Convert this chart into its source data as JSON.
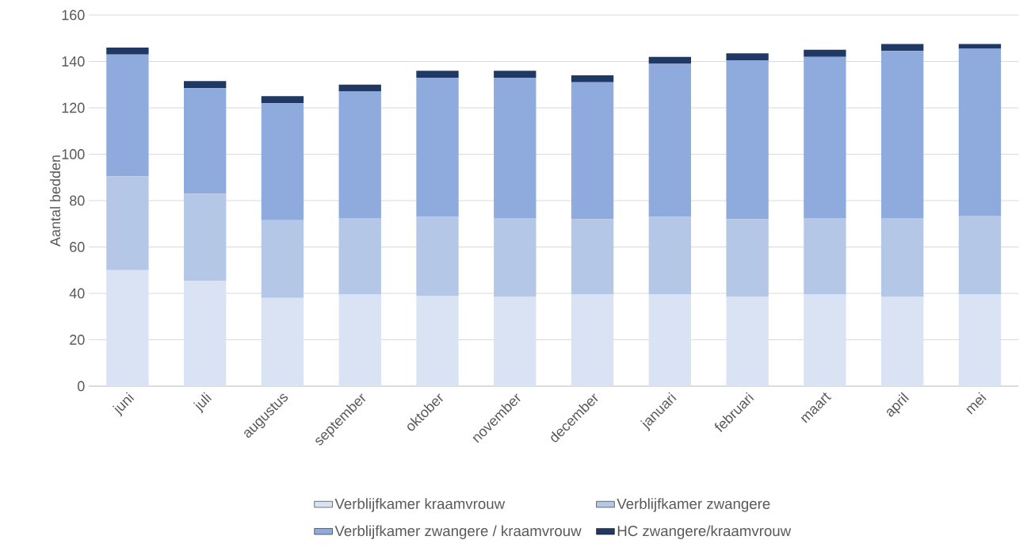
{
  "chart_data": {
    "type": "bar",
    "stacked": true,
    "ylabel": "Aantal bedden",
    "categories": [
      "juni",
      "juli",
      "augustus",
      "september",
      "oktober",
      "november",
      "december",
      "januari",
      "februari",
      "maart",
      "april",
      "mei"
    ],
    "series": [
      {
        "name": "Verblijfkamer kraamvrouw",
        "color": "#dae3f3",
        "values": [
          50,
          45.5,
          38,
          39.5,
          39,
          38.5,
          39.5,
          39.5,
          38.5,
          39.5,
          38.5,
          39.5
        ]
      },
      {
        "name": "Verblijfkamer zwangere",
        "color": "#b4c7e7",
        "values": [
          40.5,
          37.5,
          33.5,
          33,
          34,
          34,
          32.5,
          33.5,
          33.5,
          33,
          34,
          34
        ]
      },
      {
        "name": "Verblijfkamer zwangere / kraamvrouw",
        "color": "#8faadc",
        "values": [
          52.5,
          45.5,
          50.5,
          54.5,
          60,
          60.5,
          59,
          66,
          68.5,
          69.5,
          72,
          72
        ]
      },
      {
        "name": "HC zwangere/kraamvrouw",
        "color": "#203864",
        "values": [
          3,
          3,
          3,
          3,
          3,
          3,
          3,
          3,
          3,
          3,
          3,
          2
        ]
      }
    ],
    "ylim": [
      0,
      160
    ],
    "yticks": [
      0,
      20,
      40,
      60,
      80,
      100,
      120,
      140,
      160
    ],
    "grid": "y",
    "legend": "bottom"
  }
}
